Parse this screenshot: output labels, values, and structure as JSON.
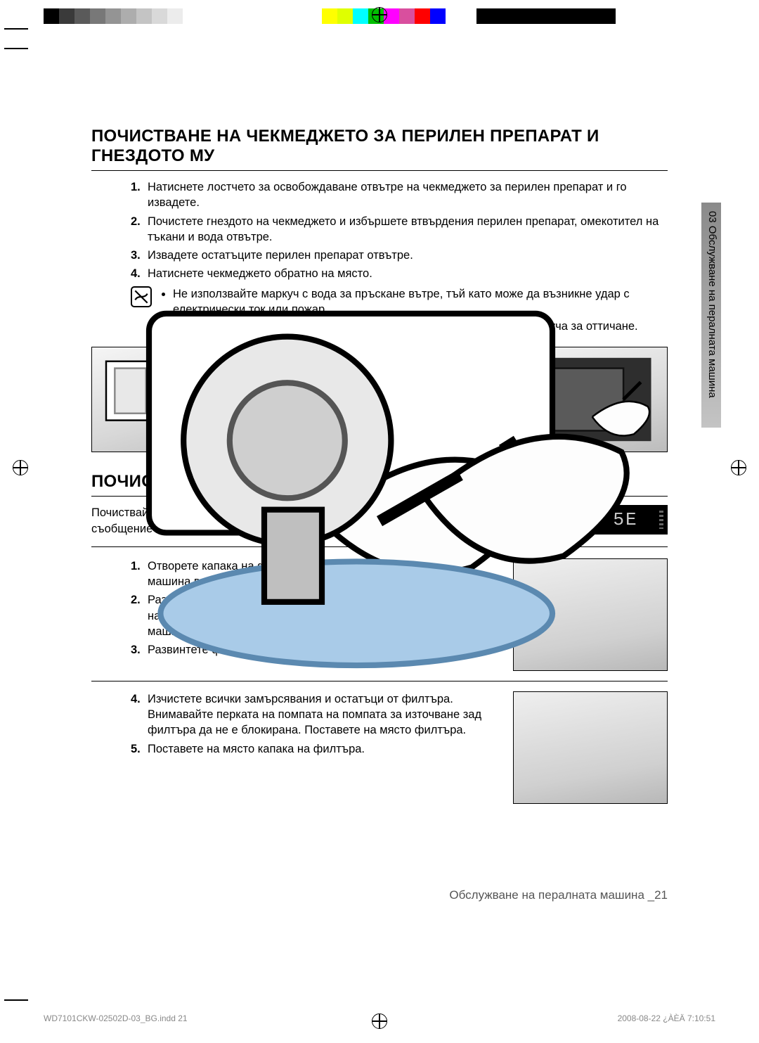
{
  "colorbar": [
    "#000000",
    "#3a3a3a",
    "#5a5a5a",
    "#787878",
    "#949494",
    "#adadad",
    "#c4c4c4",
    "#d9d9d9",
    "#ececec",
    "#ffffff",
    "#ffffff",
    "#ffffff",
    "#ffffff",
    "#ffffff",
    "#ffffff",
    "#ffffff",
    "#ffffff",
    "#ffffff",
    "#ffff00",
    "#dfff00",
    "#00ffff",
    "#00bf00",
    "#ff00ff",
    "#d94f9e",
    "#ff0000",
    "#0000ff",
    "#ffffff",
    "#ffffff",
    "#000000",
    "#000000",
    "#000000",
    "#000000",
    "#000000",
    "#000000",
    "#000000",
    "#000000",
    "#000000"
  ],
  "sidetab": "03 Обслужване на пералната машина",
  "section1": {
    "heading": "ПОЧИСТВАНЕ НА ЧЕКМЕДЖЕТО ЗА ПЕРИЛЕН ПРЕПАРАТ И ГНЕЗДОТО МУ",
    "steps": [
      "Натиснете лостчето за освобождаване отвътре на чекмеджето за перилен препарат и го извадете.",
      "Почистете гнездото на чекмеджето и избършете втвърдения перилен препарат, омекотител на тъкани и вода отвътре.",
      "Извадете остатъците перилен препарат отвътре.",
      "Натиснете чекмеджето обратно на място."
    ],
    "notes": [
      "Не използвайте маркуч с вода за пръскане вътре, тъй като може да възникне удар с електрически ток или пожар.",
      "Извадете всички монети или копчета, тъй като може да запушат маркуча за оттичане."
    ]
  },
  "section2": {
    "heading": "ПОЧИСТВАНЕ НА ФИЛТЪРА ЗА ОСТАТЪЦИ",
    "intro": "Почиствайте филтъра за остатъци 5 или 6 пъти годишно или когато видите следното съобщение за грешка на дисплея:",
    "error_code": "5E",
    "stepsA": [
      "Отворете капака на филтъра, вж. \"Източване на пералната машина в случай на злополука\".",
      "Развинтете капачката за аварийно източване със завъртане наляво и източете всичката вода. Вж. \"Източване на пералната машина в случай на злополука\".",
      "Развинтете филтъра и го извадете."
    ],
    "stepsB_start": 4,
    "stepsB": [
      "Изчистете всички замърсявания и остатъци от филтъра. Внимавайте перката на помпата на помпата за източване зад филтъра да не е блокирана. Поставете на място филтъра.",
      "Поставете на място капака на филтъра."
    ]
  },
  "footer": {
    "right": "Обслужване на пералната машина _21",
    "printleft": "WD7101CKW-02502D-03_BG.indd   21",
    "printright": "2008-08-22   ¿ÀÈÄ 7:10:51"
  }
}
